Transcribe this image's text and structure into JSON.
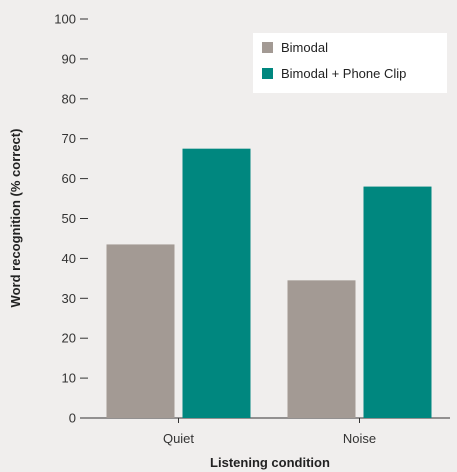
{
  "chart_data": {
    "type": "bar",
    "title": "",
    "xlabel": "Listening condition",
    "ylabel": "Word recognition (% correct)",
    "categories": [
      "Quiet",
      "Noise"
    ],
    "series": [
      {
        "name": "Bimodal",
        "values": [
          43.5,
          34.5
        ],
        "color": "#a39a94"
      },
      {
        "name": "Bimodal + Phone Clip",
        "values": [
          67.5,
          58
        ],
        "color": "#00877f"
      }
    ],
    "ylim": [
      0,
      100
    ],
    "yticks": [
      0,
      10,
      20,
      30,
      40,
      50,
      60,
      70,
      80,
      90,
      100
    ],
    "grid": false,
    "legend_position": "top-right"
  },
  "colors": {
    "background": "#f0eeed",
    "legend_background": "#ffffff",
    "axis": "#333333"
  }
}
